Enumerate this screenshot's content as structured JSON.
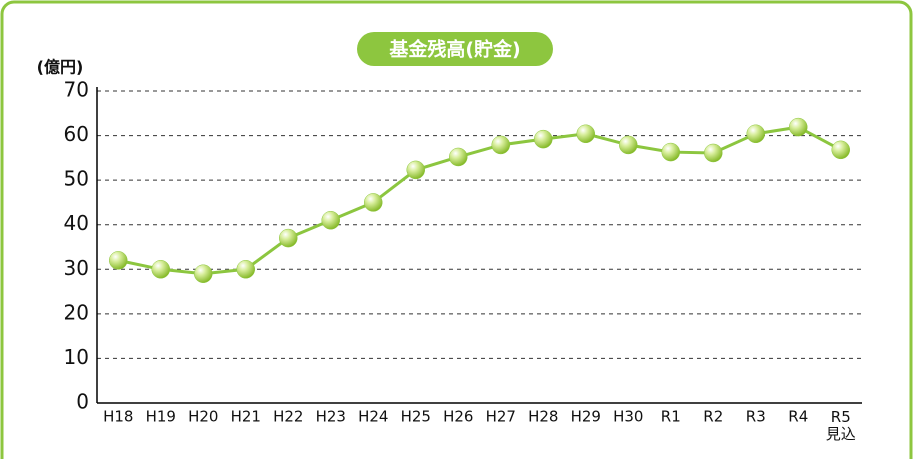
{
  "chart_data": {
    "type": "line",
    "title": "基金残高(貯金)",
    "y_label": "(億円)",
    "categories": [
      "H18",
      "H19",
      "H20",
      "H21",
      "H22",
      "H23",
      "H24",
      "H25",
      "H26",
      "H27",
      "H28",
      "H29",
      "H30",
      "R1",
      "R2",
      "R3",
      "R4",
      "R5\n見込"
    ],
    "values": [
      32,
      30,
      29,
      30,
      37,
      41,
      45,
      52.3,
      55.2,
      57.9,
      59.2,
      60.4,
      57.9,
      56.3,
      56.1,
      60.4,
      61.9,
      56.8
    ],
    "color": "#8cc63f",
    "ylim": [
      0,
      70
    ],
    "yticks": [
      0,
      10,
      20,
      30,
      40,
      50,
      60,
      70
    ],
    "grid": true
  }
}
